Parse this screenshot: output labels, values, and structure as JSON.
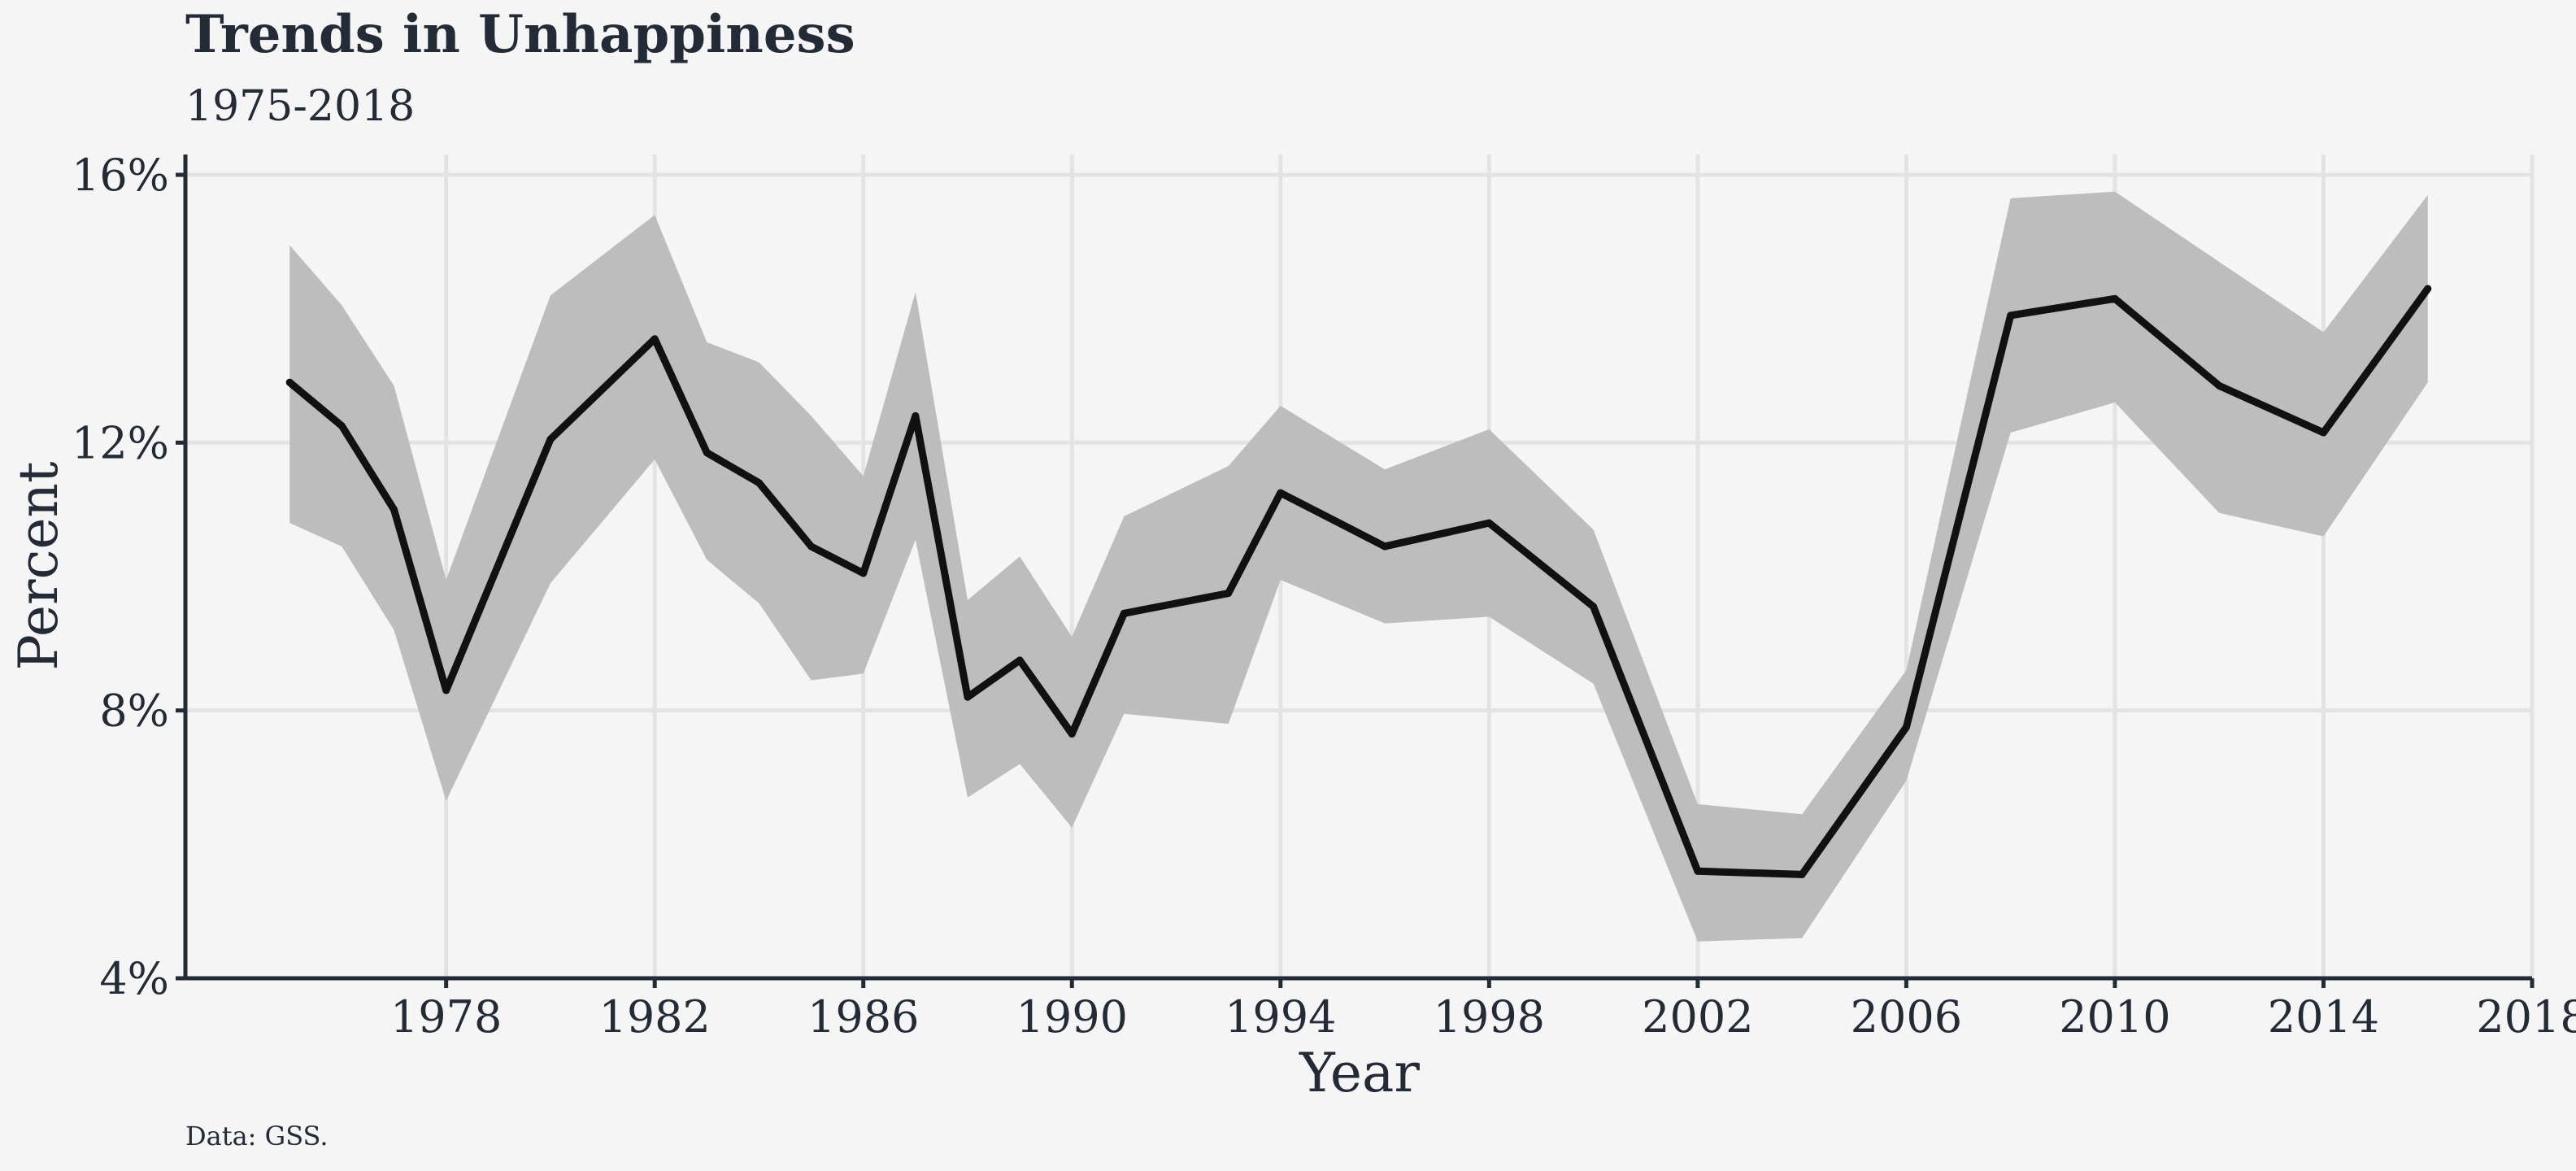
{
  "chart_data": {
    "type": "line",
    "title": "Trends in Unhappiness",
    "subtitle": "1975-2018",
    "xlabel": "Year",
    "ylabel": "Percent",
    "caption": "Data: GSS.",
    "xlim": [
      1973.0,
      2018.0
    ],
    "ylim": [
      4,
      16
    ],
    "x_ticks": [
      1978,
      1982,
      1986,
      1990,
      1994,
      1998,
      2002,
      2006,
      2010,
      2014,
      2018
    ],
    "y_ticks": [
      4,
      8,
      12,
      16
    ],
    "y_tick_labels": [
      "4%",
      "8%",
      "12%",
      "16%"
    ],
    "grid": true,
    "x": [
      1975,
      1976,
      1977,
      1978,
      1980,
      1982,
      1983,
      1984,
      1985,
      1986,
      1987,
      1988,
      1989,
      1990,
      1991,
      1993,
      1994,
      1996,
      1998,
      2000,
      2002,
      2004,
      2006,
      2008,
      2010,
      2012,
      2014,
      2016
    ],
    "series": [
      {
        "values": [
          12.9,
          12.25,
          11.0,
          8.3,
          12.05,
          13.55,
          11.85,
          11.4,
          10.45,
          10.05,
          12.4,
          8.2,
          8.75,
          7.65,
          9.45,
          9.75,
          11.25,
          10.45,
          10.8,
          9.55,
          5.6,
          5.55,
          7.75,
          13.9,
          14.15,
          12.85,
          12.15,
          14.3
        ],
        "ci_lower": [
          10.8,
          10.45,
          9.2,
          6.65,
          9.9,
          11.75,
          10.25,
          9.6,
          8.45,
          8.55,
          10.55,
          6.7,
          7.2,
          6.25,
          7.95,
          7.8,
          9.95,
          9.3,
          9.4,
          8.4,
          4.55,
          4.6,
          6.95,
          12.15,
          12.6,
          10.95,
          10.6,
          12.9
        ],
        "ci_upper": [
          14.95,
          14.05,
          12.85,
          9.95,
          14.2,
          15.4,
          13.5,
          13.2,
          12.4,
          11.5,
          14.25,
          9.65,
          10.3,
          9.1,
          10.9,
          11.65,
          12.55,
          11.6,
          12.2,
          10.7,
          6.6,
          6.45,
          8.6,
          15.65,
          15.75,
          14.7,
          13.65,
          15.7
        ]
      }
    ]
  }
}
